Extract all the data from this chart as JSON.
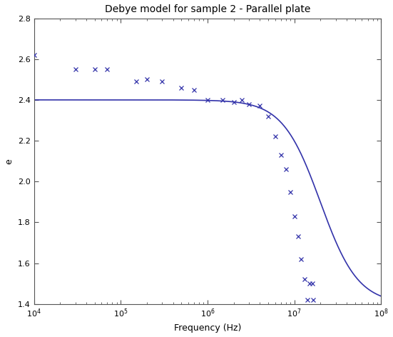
{
  "title": "Debye model for sample 2 - Parallel plate",
  "xlabel": "Frequency (Hz)",
  "ylabel": "e",
  "xlim_log": [
    4,
    8
  ],
  "ylim": [
    1.4,
    2.8
  ],
  "yticks": [
    1.4,
    1.6,
    1.8,
    2.0,
    2.2,
    2.4,
    2.6,
    2.8
  ],
  "debye_eps_inf": 1.4,
  "debye_delta_eps": 1.0,
  "debye_tau": 8e-09,
  "scatter_x": [
    10000.0,
    30000.0,
    50000.0,
    70000.0,
    150000.0,
    200000.0,
    300000.0,
    500000.0,
    700000.0,
    1000000.0,
    1500000.0,
    2000000.0,
    2500000.0,
    3000000.0,
    4000000.0,
    5000000.0,
    6000000.0,
    7000000.0,
    8000000.0,
    9000000.0,
    10000000.0,
    11000000.0,
    12000000.0,
    13000000.0,
    14000000.0,
    15000000.0,
    16000000.0,
    16500000.0
  ],
  "scatter_y": [
    2.62,
    2.55,
    2.55,
    2.55,
    2.49,
    2.5,
    2.49,
    2.46,
    2.45,
    2.4,
    2.4,
    2.39,
    2.4,
    2.38,
    2.37,
    2.32,
    2.22,
    2.13,
    2.06,
    1.95,
    1.83,
    1.73,
    1.62,
    1.52,
    1.42,
    1.5,
    1.5,
    1.42
  ],
  "line_color": "#3333aa",
  "scatter_color": "#3333aa",
  "background_color": "#ffffff",
  "title_fontsize": 10,
  "label_fontsize": 9,
  "tick_labelsize": 8
}
